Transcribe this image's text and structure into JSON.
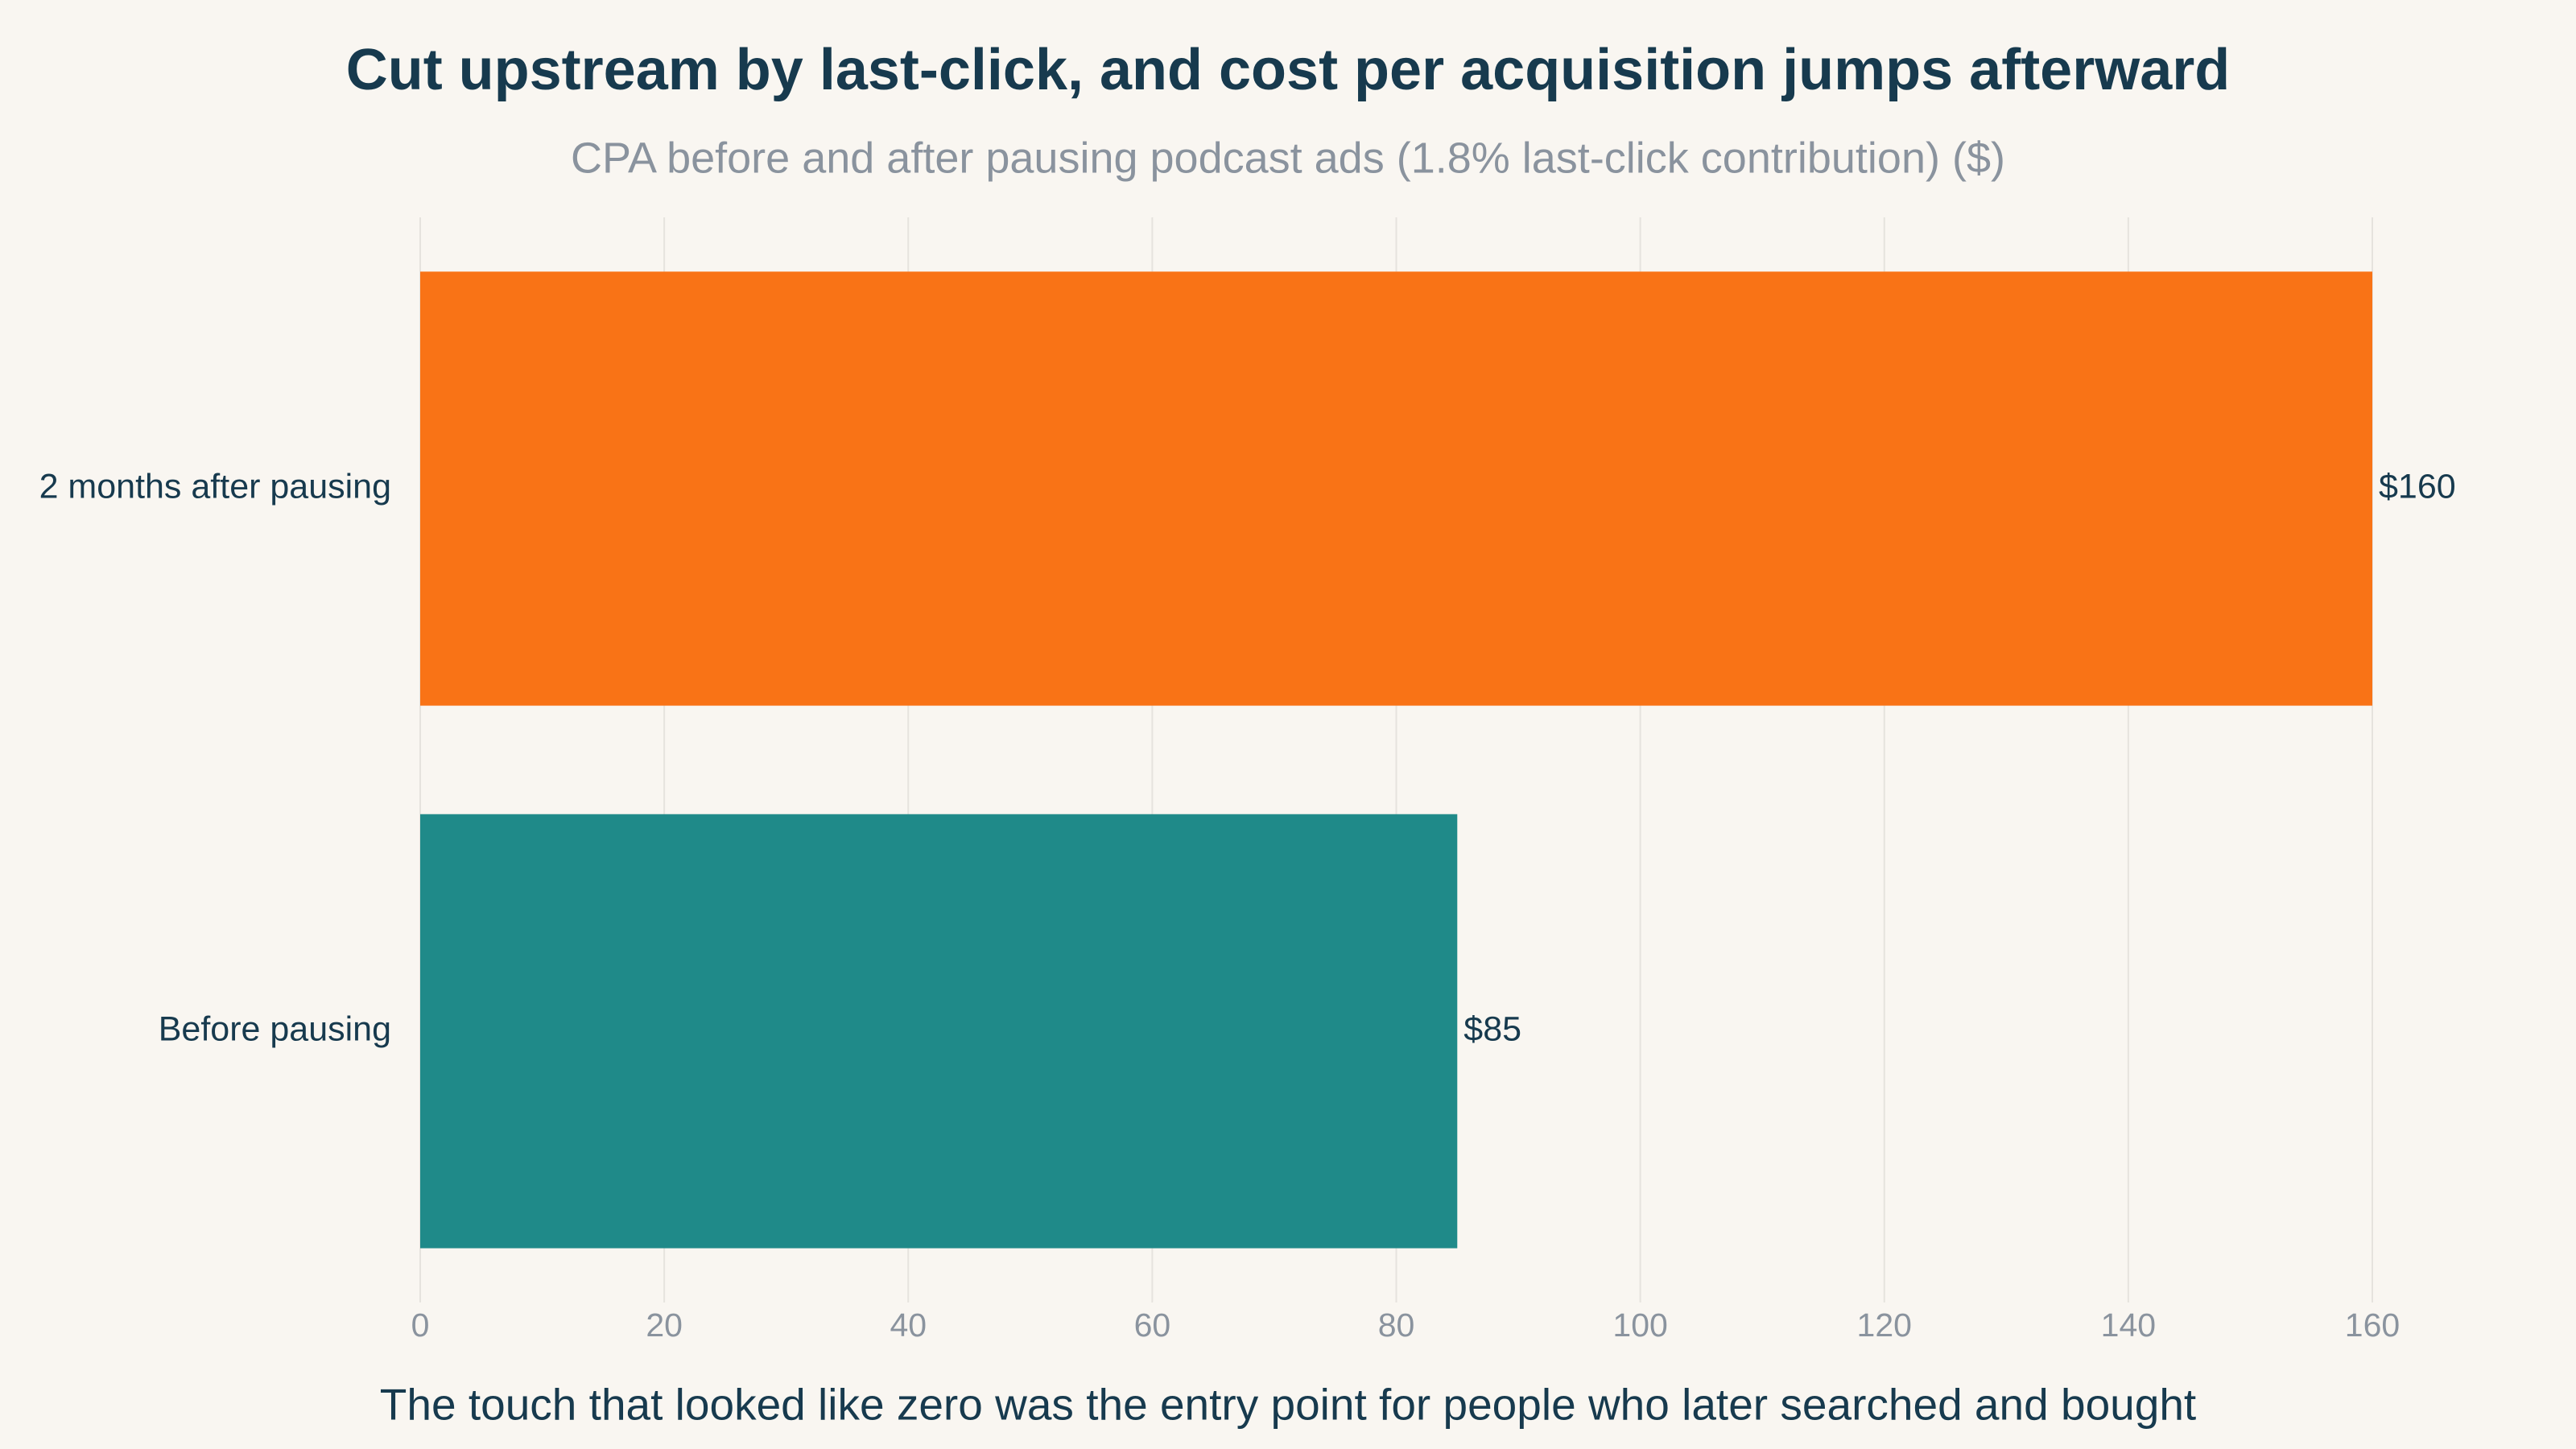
{
  "chart_data": {
    "type": "hbar",
    "title": "Cut upstream by last-click, and cost per acquisition jumps afterward",
    "subtitle": "CPA before and after pausing podcast ads (1.8% last-click contribution) ($)",
    "x_label": "The touch that looked like zero was the entry point for people who later searched and bought",
    "categories": [
      "2 months after pausing",
      "Before pausing"
    ],
    "values": [
      160,
      85
    ],
    "value_labels": [
      "$160",
      "$85"
    ],
    "colors": [
      "#f97316",
      "#1f8a89"
    ],
    "xlim": [
      0,
      160
    ],
    "xticks": [
      0,
      20,
      40,
      60,
      80,
      100,
      120,
      140,
      160
    ],
    "grid": true
  }
}
